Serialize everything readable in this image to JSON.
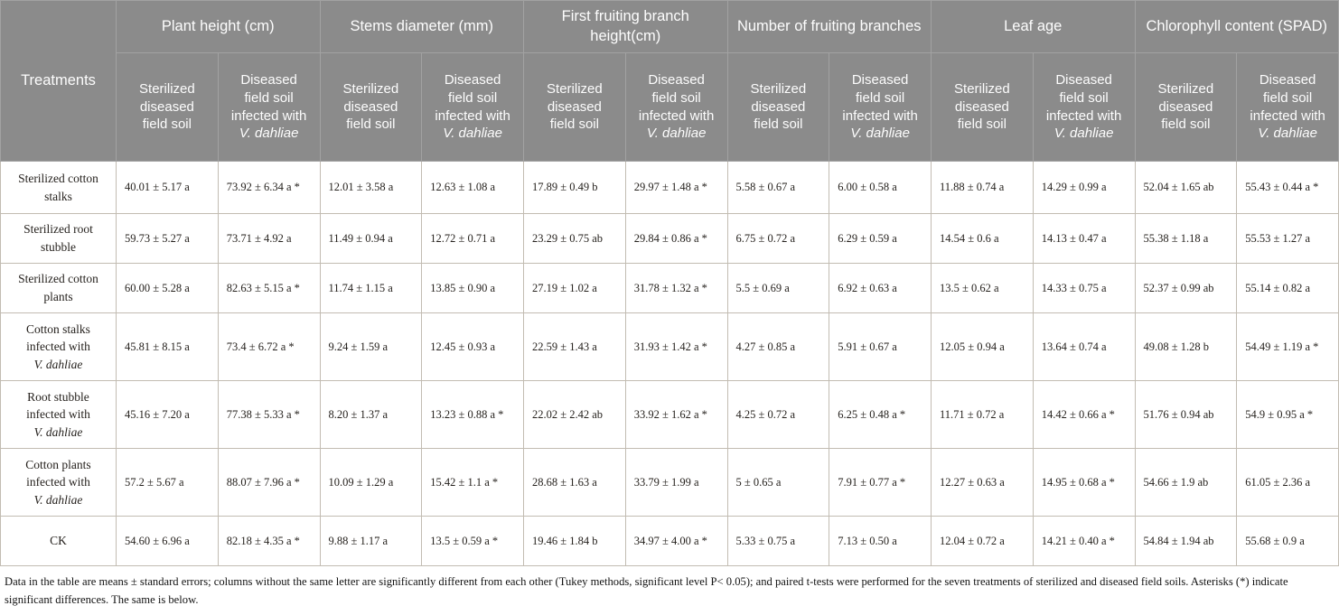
{
  "table": {
    "corner_header": "Treatments",
    "groups": [
      "Plant height (cm)",
      "Stems diameter (mm)",
      "First fruiting branch height(cm)",
      "Number of fruiting branches",
      "Leaf age",
      "Chlorophyll content (SPAD)"
    ],
    "sub_headers": {
      "sterilized": "Sterilized diseased field soil",
      "diseased": "Diseased field soil infected with",
      "species": "V. dahliae"
    },
    "rows": [
      {
        "treatment": "Sterilized cotton stalks",
        "species": null,
        "values": [
          "40.01 ± 5.17 a",
          "73.92 ± 6.34 a *",
          "12.01 ± 3.58 a",
          "12.63 ± 1.08 a",
          "17.89 ± 0.49 b",
          "29.97 ± 1.48 a *",
          "5.58 ± 0.67 a",
          "6.00 ± 0.58 a",
          "11.88 ± 0.74 a",
          "14.29 ± 0.99 a",
          "52.04 ± 1.65 ab",
          "55.43 ± 0.44 a *"
        ]
      },
      {
        "treatment": "Sterilized root stubble",
        "species": null,
        "values": [
          "59.73 ± 5.27 a",
          "73.71 ± 4.92 a",
          "11.49 ± 0.94 a",
          "12.72 ± 0.71 a",
          "23.29 ± 0.75 ab",
          "29.84 ± 0.86 a *",
          "6.75 ± 0.72 a",
          "6.29 ± 0.59 a",
          "14.54 ± 0.6 a",
          "14.13 ± 0.47 a",
          "55.38 ± 1.18 a",
          "55.53 ± 1.27 a"
        ]
      },
      {
        "treatment": "Sterilized cotton plants",
        "species": null,
        "values": [
          "60.00 ± 5.28 a",
          "82.63 ± 5.15 a *",
          "11.74 ± 1.15 a",
          "13.85 ± 0.90 a",
          "27.19 ± 1.02 a",
          "31.78 ± 1.32 a *",
          "5.5 ± 0.69 a",
          "6.92 ± 0.63 a",
          "13.5 ± 0.62 a",
          "14.33 ± 0.75 a",
          "52.37 ± 0.99 ab",
          "55.14 ± 0.82 a"
        ]
      },
      {
        "treatment": "Cotton stalks infected with",
        "species": "V. dahliae",
        "values": [
          "45.81 ± 8.15 a",
          "73.4 ± 6.72 a *",
          "9.24 ± 1.59 a",
          "12.45 ± 0.93 a",
          "22.59 ± 1.43 a",
          "31.93 ± 1.42 a *",
          "4.27 ± 0.85 a",
          "5.91 ± 0.67 a",
          "12.05 ± 0.94 a",
          "13.64 ± 0.74 a",
          "49.08 ± 1.28 b",
          "54.49 ± 1.19 a *"
        ]
      },
      {
        "treatment": "Root stubble infected with",
        "species": "V. dahliae",
        "values": [
          "45.16 ± 7.20 a",
          "77.38 ± 5.33 a *",
          "8.20 ± 1.37 a",
          "13.23 ± 0.88 a *",
          "22.02 ± 2.42 ab",
          "33.92 ± 1.62 a *",
          "4.25 ± 0.72 a",
          "6.25 ± 0.48 a *",
          "11.71 ± 0.72 a",
          "14.42 ± 0.66 a *",
          "51.76 ± 0.94 ab",
          "54.9 ± 0.95 a *"
        ]
      },
      {
        "treatment": "Cotton plants infected with",
        "species": "V. dahliae",
        "values": [
          "57.2 ± 5.67 a",
          "88.07 ± 7.96 a *",
          "10.09 ± 1.29 a",
          "15.42 ± 1.1 a *",
          "28.68 ± 1.63 a",
          "33.79 ± 1.99 a",
          "5 ± 0.65 a",
          "7.91 ± 0.77 a *",
          "12.27 ± 0.63 a",
          "14.95 ± 0.68 a *",
          "54.66 ± 1.9 ab",
          "61.05 ± 2.36 a"
        ]
      },
      {
        "treatment": "CK",
        "species": null,
        "values": [
          "54.60 ± 6.96 a",
          "82.18 ± 4.35 a *",
          "9.88 ± 1.17 a",
          "13.5 ± 0.59 a *",
          "19.46 ± 1.84 b",
          "34.97 ± 4.00 a *",
          "5.33 ± 0.75 a",
          "7.13 ± 0.50 a",
          "12.04 ± 0.72 a",
          "14.21 ± 0.40 a *",
          "54.84 ± 1.94 ab",
          "55.68 ± 0.9 a"
        ]
      }
    ],
    "footnote": "Data in the table are means ± standard errors; columns without the same letter are significantly different from each other (Tukey methods, significant level P< 0.05); and paired t-tests were performed for the seven treatments of sterilized and diseased field soils. Asterisks (*) indicate significant differences. The same is below."
  },
  "colors": {
    "header_bg": "#8b8b8b",
    "header_border": "#a2a2a2",
    "header_text": "#fdfdfd",
    "body_border": "#c2bcb2",
    "body_text": "#26221e"
  }
}
